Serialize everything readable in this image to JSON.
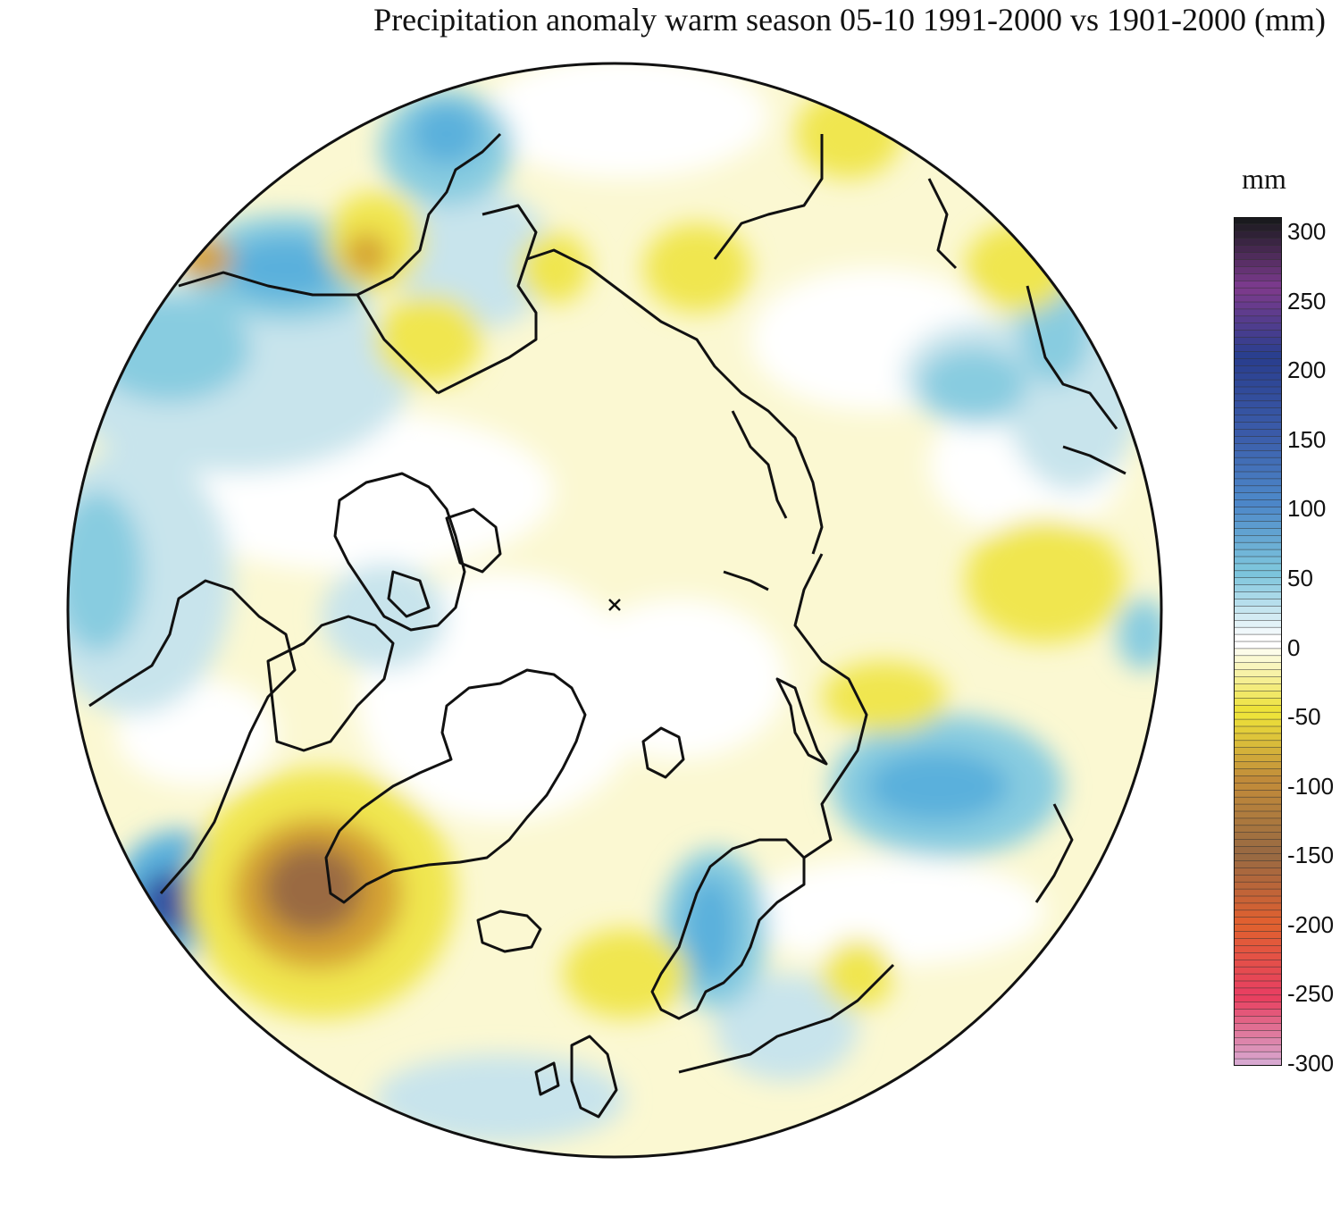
{
  "title": "Precipitation anomaly warm season 05-10 1991-2000 vs 1901-2000 (mm)",
  "legend": {
    "unit": "mm",
    "ticks": [
      "300",
      "250",
      "200",
      "150",
      "100",
      "50",
      "0",
      "-50",
      "-100",
      "-150",
      "-200",
      "-250",
      "-300"
    ],
    "colors": {
      "300": "#1a1a1e",
      "250": "#7a3a8c",
      "200": "#2a3f8f",
      "150": "#3a5aa8",
      "100": "#4c86c8",
      "50": "#7cc4dc",
      "0": "#ffffff",
      "-50": "#ede23a",
      "-100": "#c08a3a",
      "-150": "#9a6a42",
      "-200": "#e06030",
      "-250": "#e84060",
      "-300": "#d8a8d0"
    }
  },
  "map_colors": {
    "ocean_land_base": "#fbf8d2",
    "neutral": "#ffffff",
    "light_blue": "#c8e4ec",
    "mid_blue": "#88cce0",
    "blue": "#5ab0dc",
    "deep_blue": "#3050a0",
    "light_yellow": "#f8f3b4",
    "yellow": "#f0e650",
    "ochre": "#d4a030",
    "brown": "#9a6a42",
    "coastline": "#111111"
  }
}
